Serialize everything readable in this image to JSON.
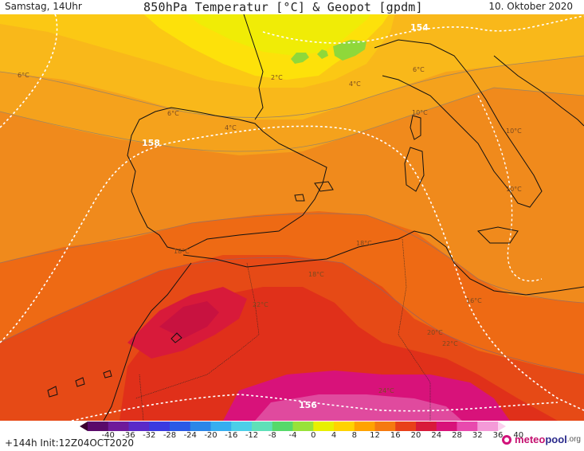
{
  "header": {
    "time_label": "Samstag, 14Uhr",
    "title": "850hPa Temperatur [°C] & Geopot [gpdm]",
    "date": "10. Oktober 2020"
  },
  "footer": {
    "run_label": "+144h  Init:12Z04OCT2020",
    "logo_part1": "meteo",
    "logo_part2": "pool",
    "logo_part3": ".org"
  },
  "colorbar": {
    "ticks": [
      "-40",
      "-36",
      "-32",
      "-28",
      "-24",
      "-20",
      "-16",
      "-12",
      "-8",
      "-4",
      "0",
      "4",
      "8",
      "12",
      "16",
      "20",
      "24",
      "28",
      "32",
      "36",
      "40"
    ],
    "colors": [
      "#3a0030",
      "#5a0a6a",
      "#6f1a9a",
      "#5a2ac8",
      "#3a3ae0",
      "#2a5ae6",
      "#2a86e8",
      "#36aef0",
      "#4ccfe8",
      "#5fe0b8",
      "#56d96a",
      "#98e23a",
      "#e8f000",
      "#ffd300",
      "#ffa300",
      "#f57a10",
      "#e8401a",
      "#d81a3a",
      "#d8127a",
      "#e84aae",
      "#f49ad8",
      "#fbd0ee"
    ]
  },
  "map": {
    "temperature_labels": [
      "6°C",
      "2°C",
      "6°C",
      "4°C",
      "4°C",
      "6°C",
      "10°C",
      "10°C",
      "10°C",
      "18°C",
      "18°C",
      "16°C",
      "22°C",
      "18°C",
      "20°C",
      "22°C",
      "24°C"
    ],
    "geopotential_labels": [
      "154",
      "158",
      "156"
    ]
  }
}
